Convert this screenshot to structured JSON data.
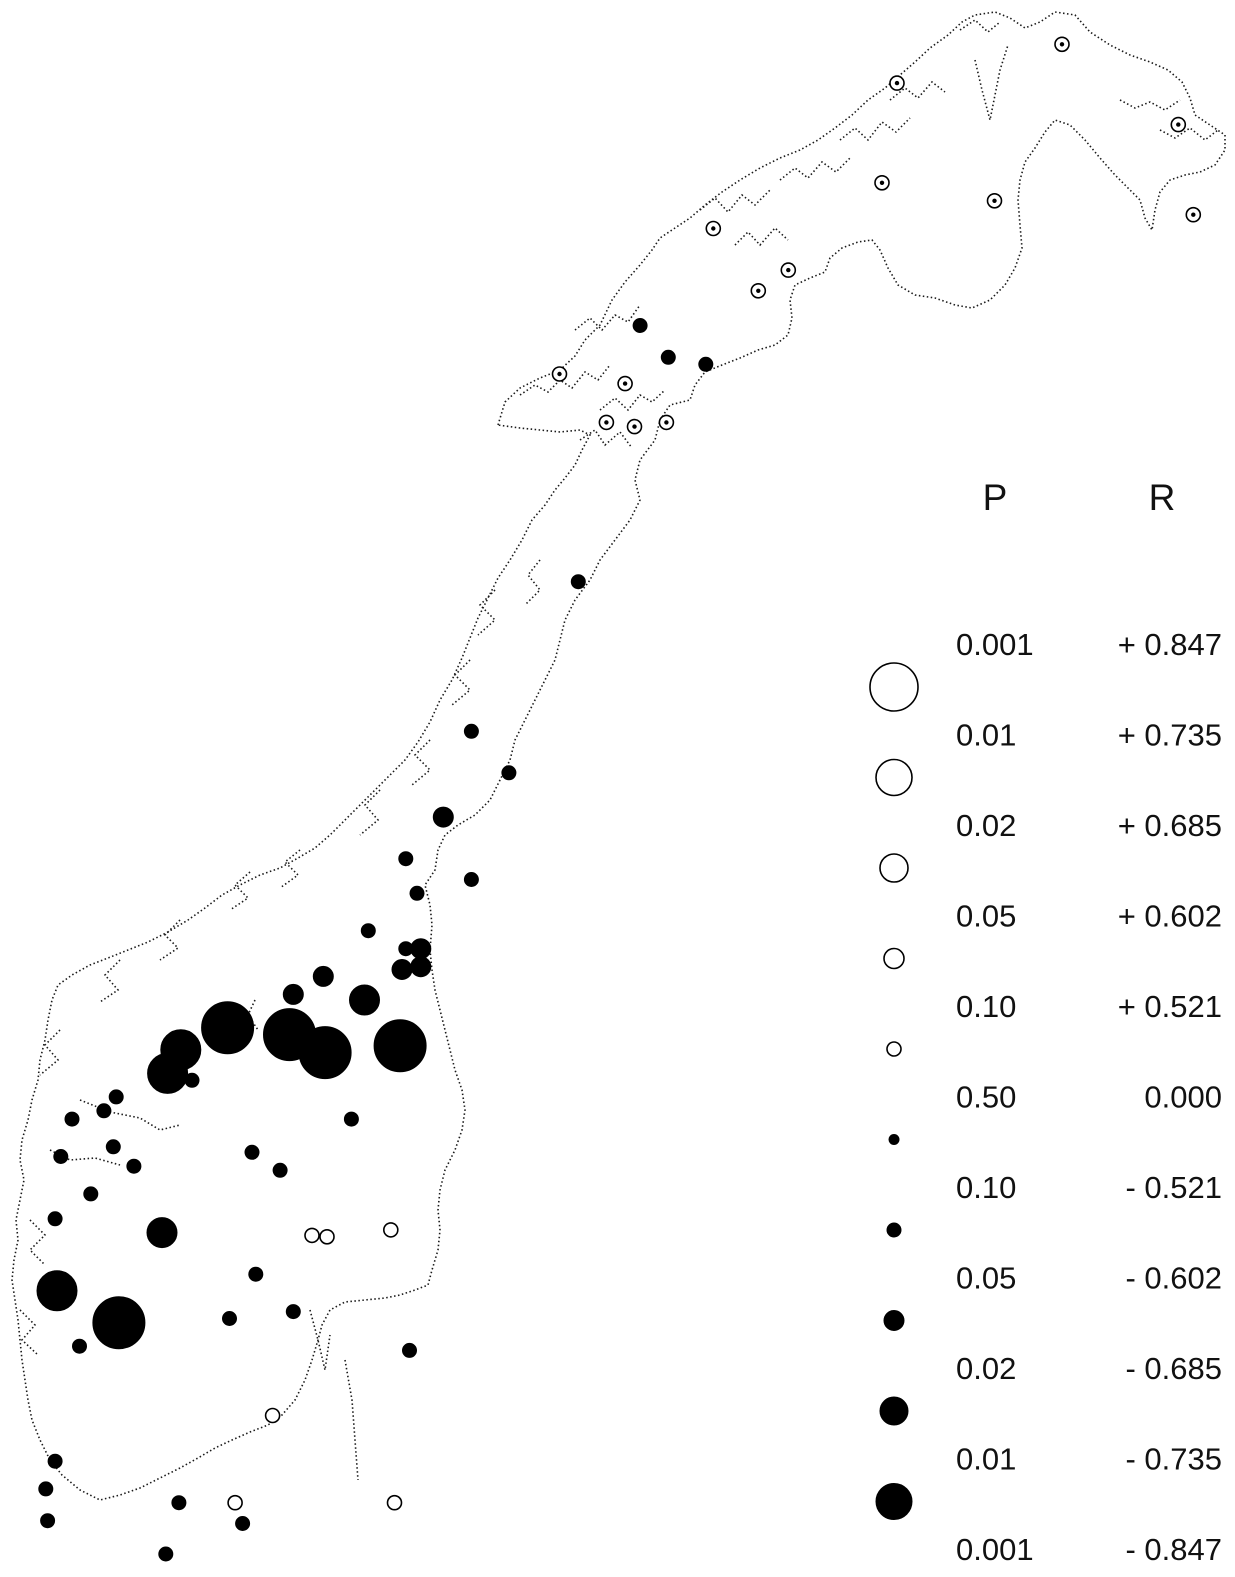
{
  "figure": {
    "legend": {
      "header_p": "P",
      "header_r": "R",
      "rows": [
        {
          "p": "0.001",
          "r": "+ 0.847",
          "kind": "open",
          "size": 6
        },
        {
          "p": "0.01",
          "r": "+ 0.735",
          "kind": "open",
          "size": 5
        },
        {
          "p": "0.02",
          "r": "+ 0.685",
          "kind": "open",
          "size": 4
        },
        {
          "p": "0.05",
          "r": "+ 0.602",
          "kind": "open",
          "size": 3
        },
        {
          "p": "0.10",
          "r": "+ 0.521",
          "kind": "open",
          "size": 2
        },
        {
          "p": "0.50",
          "r": "0.000",
          "kind": "filled",
          "size": 1
        },
        {
          "p": "0.10",
          "r": "- 0.521",
          "kind": "filled",
          "size": 2
        },
        {
          "p": "0.05",
          "r": "- 0.602",
          "kind": "filled",
          "size": 3
        },
        {
          "p": "0.02",
          "r": "- 0.685",
          "kind": "filled",
          "size": 4
        },
        {
          "p": "0.01",
          "r": "- 0.735",
          "kind": "filled",
          "size": 5
        },
        {
          "p": "0.001",
          "r": "- 0.847",
          "kind": "filled",
          "size": 6
        }
      ]
    },
    "stations": [
      {
        "kind": "open",
        "size": 2,
        "lon": 28.0,
        "lat": 70.98
      },
      {
        "kind": "open",
        "size": 2,
        "lon": 23.6,
        "lat": 70.7
      },
      {
        "kind": "open",
        "size": 2,
        "lon": 31.1,
        "lat": 70.4
      },
      {
        "kind": "open",
        "size": 2,
        "lon": 31.5,
        "lat": 69.75
      },
      {
        "kind": "open",
        "size": 2,
        "lon": 23.2,
        "lat": 69.98
      },
      {
        "kind": "open",
        "size": 2,
        "lon": 26.2,
        "lat": 69.85
      },
      {
        "kind": "open",
        "size": 2,
        "lon": 18.7,
        "lat": 69.65
      },
      {
        "kind": "open",
        "size": 2,
        "lon": 20.7,
        "lat": 69.35
      },
      {
        "kind": "open",
        "size": 2,
        "lon": 19.9,
        "lat": 69.2
      },
      {
        "kind": "filled",
        "size": 2,
        "lon": 16.75,
        "lat": 68.95
      },
      {
        "kind": "filled",
        "size": 2,
        "lon": 17.5,
        "lat": 68.72
      },
      {
        "kind": "filled",
        "size": 2,
        "lon": 18.5,
        "lat": 68.67
      },
      {
        "kind": "open",
        "size": 2,
        "lon": 14.6,
        "lat": 68.6
      },
      {
        "kind": "open",
        "size": 2,
        "lon": 16.35,
        "lat": 68.53
      },
      {
        "kind": "open",
        "size": 2,
        "lon": 15.85,
        "lat": 68.25
      },
      {
        "kind": "open",
        "size": 2,
        "lon": 16.6,
        "lat": 68.22
      },
      {
        "kind": "open",
        "size": 2,
        "lon": 17.45,
        "lat": 68.25
      },
      {
        "kind": "filled",
        "size": 2,
        "lon": 15.1,
        "lat": 67.1
      },
      {
        "kind": "filled",
        "size": 2,
        "lon": 12.25,
        "lat": 66.02
      },
      {
        "kind": "filled",
        "size": 2,
        "lon": 13.25,
        "lat": 65.72
      },
      {
        "kind": "filled",
        "size": 3,
        "lon": 11.5,
        "lat": 65.4
      },
      {
        "kind": "filled",
        "size": 2,
        "lon": 10.5,
        "lat": 65.1
      },
      {
        "kind": "filled",
        "size": 2,
        "lon": 12.25,
        "lat": 64.95
      },
      {
        "kind": "filled",
        "size": 2,
        "lon": 10.8,
        "lat": 64.85
      },
      {
        "kind": "filled",
        "size": 2,
        "lon": 9.5,
        "lat": 64.58
      },
      {
        "kind": "filled",
        "size": 2,
        "lon": 10.5,
        "lat": 64.45
      },
      {
        "kind": "filled",
        "size": 3,
        "lon": 10.9,
        "lat": 64.45
      },
      {
        "kind": "filled",
        "size": 3,
        "lon": 10.4,
        "lat": 64.3
      },
      {
        "kind": "filled",
        "size": 3,
        "lon": 10.9,
        "lat": 64.32
      },
      {
        "kind": "filled",
        "size": 3,
        "lon": 8.3,
        "lat": 64.25
      },
      {
        "kind": "filled",
        "size": 3,
        "lon": 7.5,
        "lat": 64.12
      },
      {
        "kind": "filled",
        "size": 4,
        "lon": 9.4,
        "lat": 64.08
      },
      {
        "kind": "filled",
        "size": 6,
        "lon": 5.75,
        "lat": 63.88
      },
      {
        "kind": "filled",
        "size": 6,
        "lon": 7.4,
        "lat": 63.83
      },
      {
        "kind": "filled",
        "size": 6,
        "lon": 8.35,
        "lat": 63.7
      },
      {
        "kind": "filled",
        "size": 6,
        "lon": 10.35,
        "lat": 63.75
      },
      {
        "kind": "filled",
        "size": 5,
        "lon": 4.5,
        "lat": 63.72
      },
      {
        "kind": "filled",
        "size": 5,
        "lon": 4.15,
        "lat": 63.55
      },
      {
        "kind": "filled",
        "size": 2,
        "lon": 4.8,
        "lat": 63.5
      },
      {
        "kind": "filled",
        "size": 2,
        "lon": 2.78,
        "lat": 63.38
      },
      {
        "kind": "filled",
        "size": 2,
        "lon": 2.45,
        "lat": 63.28
      },
      {
        "kind": "filled",
        "size": 2,
        "lon": 1.6,
        "lat": 63.22
      },
      {
        "kind": "filled",
        "size": 2,
        "lon": 2.7,
        "lat": 63.02
      },
      {
        "kind": "filled",
        "size": 2,
        "lon": 1.3,
        "lat": 62.95
      },
      {
        "kind": "filled",
        "size": 2,
        "lon": 3.25,
        "lat": 62.88
      },
      {
        "kind": "filled",
        "size": 2,
        "lon": 9.05,
        "lat": 63.22
      },
      {
        "kind": "filled",
        "size": 2,
        "lon": 6.4,
        "lat": 62.98
      },
      {
        "kind": "filled",
        "size": 2,
        "lon": 7.15,
        "lat": 62.85
      },
      {
        "kind": "filled",
        "size": 2,
        "lon": 2.1,
        "lat": 62.68
      },
      {
        "kind": "filled",
        "size": 2,
        "lon": 1.15,
        "lat": 62.5
      },
      {
        "kind": "filled",
        "size": 4,
        "lon": 4.0,
        "lat": 62.4
      },
      {
        "kind": "open",
        "size": 2,
        "lon": 8.0,
        "lat": 62.38
      },
      {
        "kind": "open",
        "size": 2,
        "lon": 8.4,
        "lat": 62.37
      },
      {
        "kind": "open",
        "size": 2,
        "lon": 10.1,
        "lat": 62.42
      },
      {
        "kind": "filled",
        "size": 2,
        "lon": 6.5,
        "lat": 62.1
      },
      {
        "kind": "filled",
        "size": 5,
        "lon": 1.2,
        "lat": 61.98
      },
      {
        "kind": "filled",
        "size": 6,
        "lon": 2.85,
        "lat": 61.75
      },
      {
        "kind": "filled",
        "size": 2,
        "lon": 7.5,
        "lat": 61.83
      },
      {
        "kind": "filled",
        "size": 2,
        "lon": 5.8,
        "lat": 61.78
      },
      {
        "kind": "filled",
        "size": 2,
        "lon": 1.8,
        "lat": 61.58
      },
      {
        "kind": "filled",
        "size": 2,
        "lon": 10.6,
        "lat": 61.55
      },
      {
        "kind": "open",
        "size": 2,
        "lon": 6.95,
        "lat": 61.08
      },
      {
        "kind": "filled",
        "size": 2,
        "lon": 1.15,
        "lat": 60.75
      },
      {
        "kind": "filled",
        "size": 2,
        "lon": 0.9,
        "lat": 60.55
      },
      {
        "kind": "filled",
        "size": 2,
        "lon": 4.45,
        "lat": 60.45
      },
      {
        "kind": "open",
        "size": 2,
        "lon": 5.95,
        "lat": 60.45
      },
      {
        "kind": "open",
        "size": 2,
        "lon": 10.2,
        "lat": 60.45
      },
      {
        "kind": "filled",
        "size": 2,
        "lon": 0.95,
        "lat": 60.32
      },
      {
        "kind": "filled",
        "size": 2,
        "lon": 6.15,
        "lat": 60.3
      },
      {
        "kind": "filled",
        "size": 2,
        "lon": 4.1,
        "lat": 60.08
      },
      {
        "kind": "filled",
        "size": 2,
        "lon": 1.75,
        "lat": 59.68
      },
      {
        "kind": "filled",
        "size": 2,
        "lon": 3.65,
        "lat": 59.67
      },
      {
        "kind": "filled",
        "size": 2,
        "lon": 2.55,
        "lat": 59.55
      }
    ]
  }
}
